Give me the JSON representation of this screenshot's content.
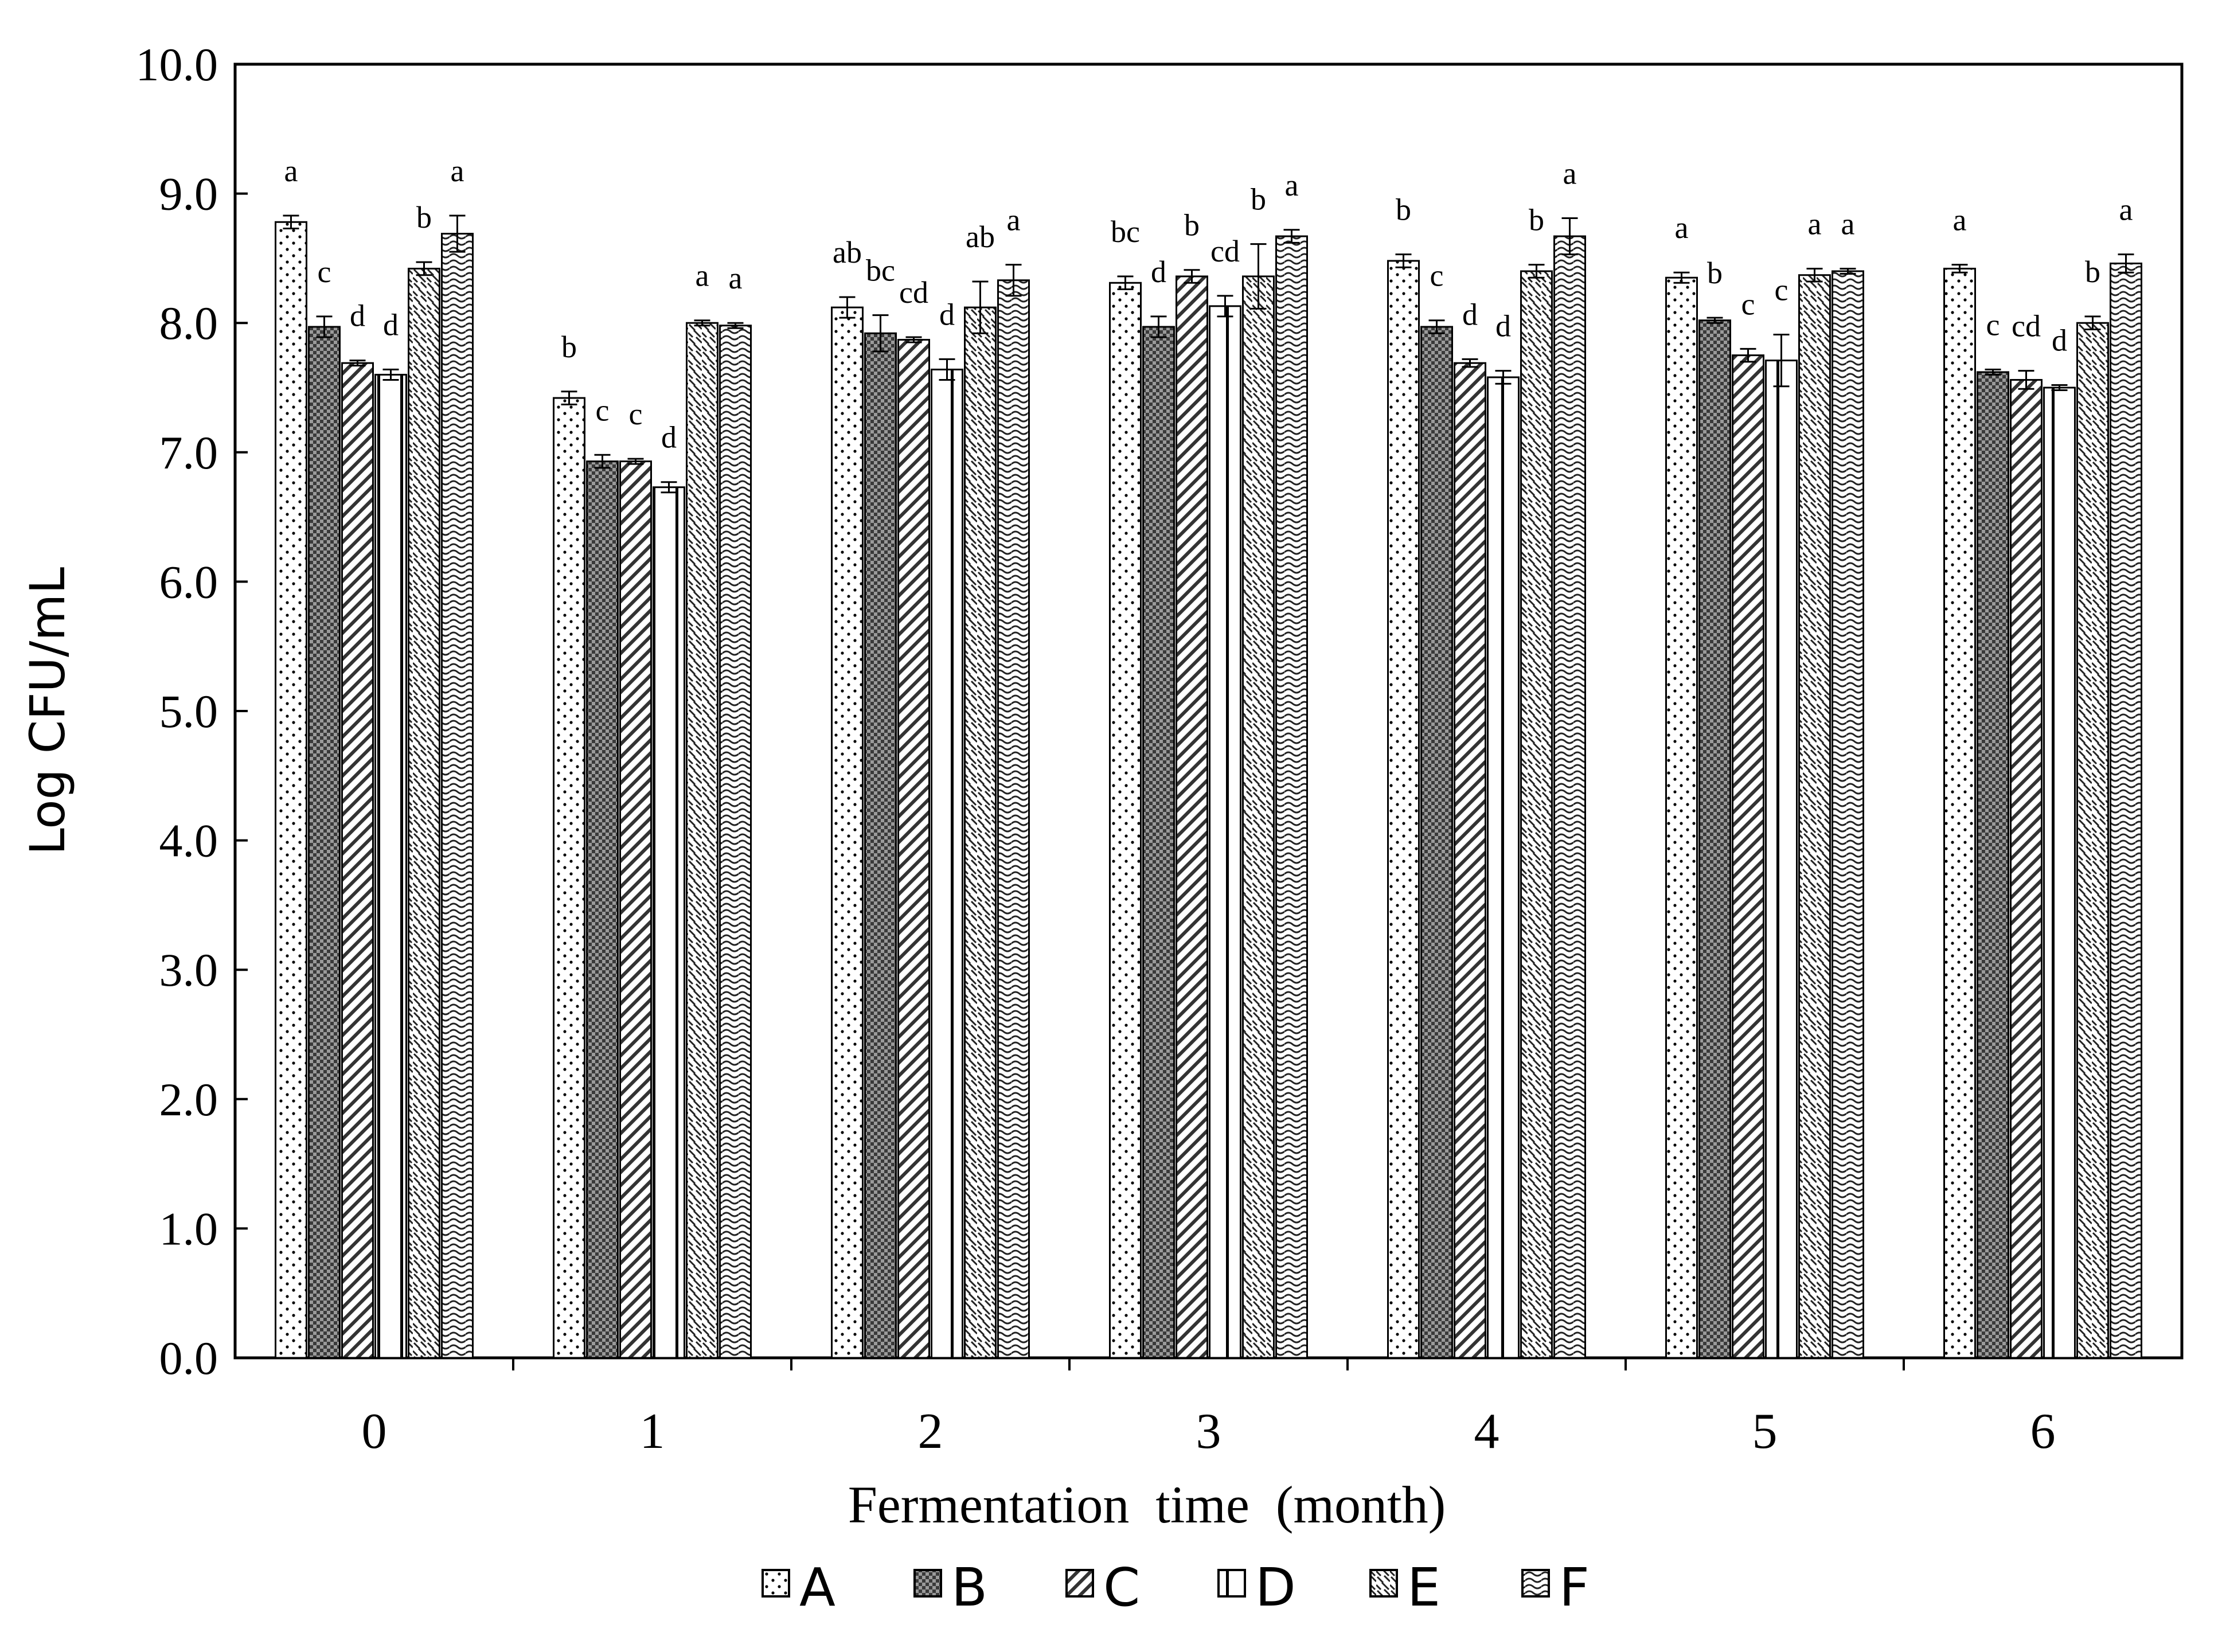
{
  "chart_data": {
    "type": "bar",
    "title": "",
    "xlabel": "Fermentation  time  (month)",
    "ylabel": "Log CFU/mL",
    "ylim": [
      0,
      10
    ],
    "yticks": [
      "0.0",
      "1.0",
      "2.0",
      "3.0",
      "4.0",
      "5.0",
      "6.0",
      "7.0",
      "8.0",
      "9.0",
      "10.0"
    ],
    "categories": [
      "0",
      "1",
      "2",
      "3",
      "4",
      "5",
      "6"
    ],
    "grid": false,
    "legend_position": "bottom",
    "series": [
      {
        "name": "A",
        "values": [
          8.78,
          7.42,
          8.12,
          8.31,
          8.48,
          8.35,
          8.42
        ],
        "errors": [
          0.05,
          0.05,
          0.08,
          0.05,
          0.05,
          0.04,
          0.03
        ],
        "letters": [
          "a",
          "b",
          "ab",
          "bc",
          "b",
          "a",
          "a"
        ]
      },
      {
        "name": "B",
        "values": [
          7.97,
          6.93,
          7.92,
          7.97,
          7.97,
          8.02,
          7.62
        ],
        "errors": [
          0.08,
          0.05,
          0.14,
          0.08,
          0.05,
          0.02,
          0.02
        ],
        "letters": [
          "c",
          "c",
          "bc",
          "d",
          "c",
          "b",
          "c"
        ]
      },
      {
        "name": "C",
        "values": [
          7.69,
          6.93,
          7.87,
          8.36,
          7.69,
          7.75,
          7.56
        ],
        "errors": [
          0.02,
          0.02,
          0.02,
          0.05,
          0.03,
          0.05,
          0.07
        ],
        "letters": [
          "d",
          "c",
          "cd",
          "b",
          "d",
          "c",
          "cd"
        ]
      },
      {
        "name": "D",
        "values": [
          7.6,
          6.73,
          7.64,
          8.13,
          7.58,
          7.71,
          7.5
        ],
        "errors": [
          0.04,
          0.04,
          0.08,
          0.08,
          0.05,
          0.2,
          0.02
        ],
        "letters": [
          "d",
          "d",
          "d",
          "cd",
          "d",
          "c",
          "d"
        ]
      },
      {
        "name": "E",
        "values": [
          8.42,
          8.0,
          8.12,
          8.36,
          8.4,
          8.37,
          8.0
        ],
        "errors": [
          0.05,
          0.02,
          0.2,
          0.25,
          0.05,
          0.05,
          0.05
        ],
        "letters": [
          "b",
          "a",
          "ab",
          "b",
          "b",
          "a",
          "b"
        ]
      },
      {
        "name": "F",
        "values": [
          8.69,
          7.98,
          8.33,
          8.67,
          8.67,
          8.4,
          8.46
        ],
        "errors": [
          0.14,
          0.02,
          0.12,
          0.05,
          0.14,
          0.02,
          0.07
        ],
        "letters": [
          "a",
          "a",
          "a",
          "a",
          "a",
          "a",
          "a"
        ]
      }
    ]
  }
}
